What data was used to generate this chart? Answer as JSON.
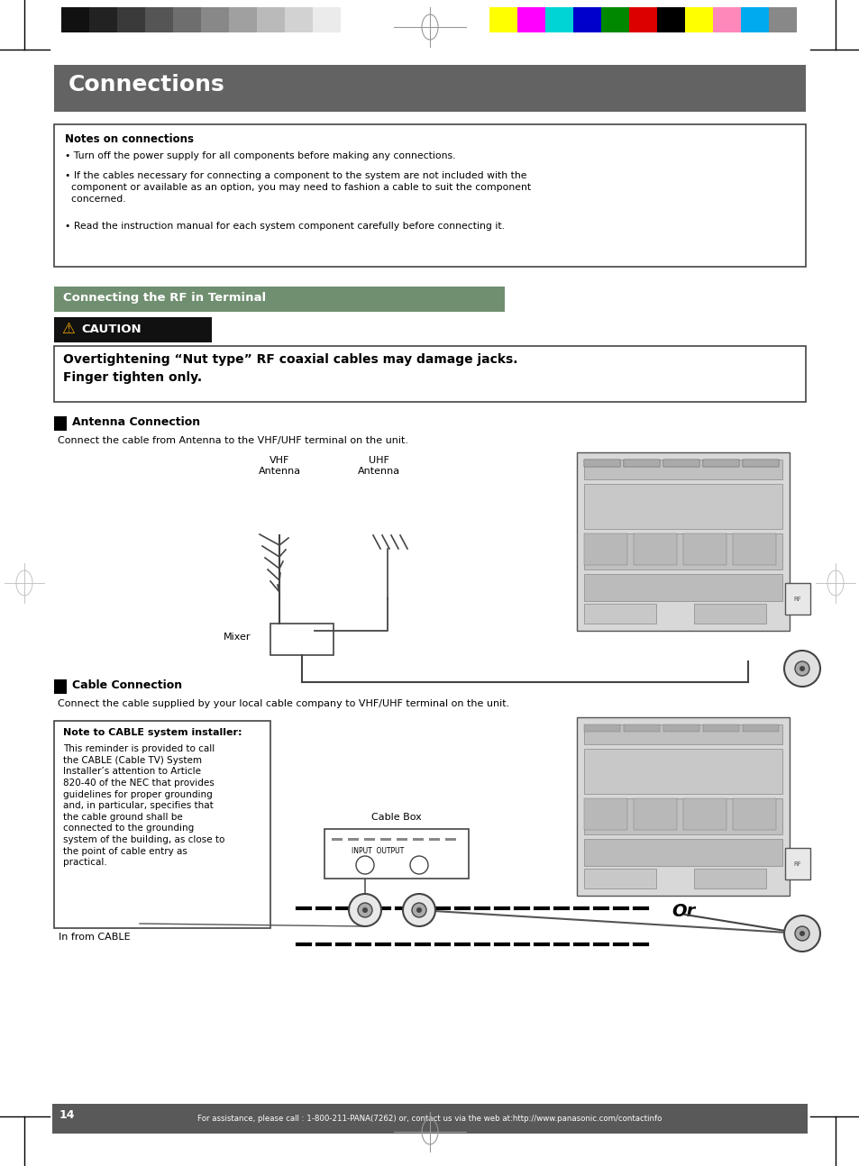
{
  "page_bg": "#ffffff",
  "header_bar_color": "#636363",
  "header_text": "Connections",
  "header_text_color": "#ffffff",
  "color_bar_left": [
    "#111111",
    "#222222",
    "#3a3a3a",
    "#555555",
    "#6e6e6e",
    "#888888",
    "#a0a0a0",
    "#bababa",
    "#d2d2d2",
    "#ebebeb",
    "#ffffff"
  ],
  "color_bar_right": [
    "#ffff00",
    "#ff00ff",
    "#00d4d4",
    "#0000cc",
    "#008800",
    "#dd0000",
    "#000000",
    "#ffff00",
    "#ff88bb",
    "#00aaee",
    "#888888"
  ],
  "notes_box_title": "Notes on connections",
  "bullet1": "Turn off the power supply for all components before making any connections.",
  "bullet2": "If the cables necessary for connecting a component to the system are not included with the\n  component or available as an option, you may need to fashion a cable to suit the component\n  concerned.",
  "bullet3": "Read the instruction manual for each system component carefully before connecting it.",
  "section2_title": "Connecting the RF in Terminal",
  "section2_bg": "#6a8f6a",
  "caution_label": "CAUTION",
  "caution_bg": "#111111",
  "caution_text": "Overtightening “Nut type” RF coaxial cables may damage jacks.\nFinger tighten only.",
  "antenna_title": "Antenna Connection",
  "antenna_body": "Connect the cable from Antenna to the VHF/UHF terminal on the unit.",
  "vhf_label": "VHF\nAntenna",
  "uhf_label": "UHF\nAntenna",
  "mixer_label": "Mixer",
  "cable_title": "Cable Connection",
  "cable_body": "Connect the cable supplied by your local cable company to VHF/UHF terminal on the unit.",
  "note_cable_title": "Note to CABLE system installer:",
  "note_cable_body": "This reminder is provided to call\nthe CABLE (Cable TV) System\nInstaller’s attention to Article\n820-40 of the NEC that provides\nguidelines for proper grounding\nand, in particular, specifies that\nthe cable ground shall be\nconnected to the grounding\nsystem of the building, as close to\nthe point of cable entry as\npractical.",
  "cable_box_label": "Cable Box",
  "in_from_cable": "In from CABLE",
  "or_label": "Or",
  "footer_page": "14",
  "footer_text": "For assistance, please call : 1-800-211-PANA(7262) or, contact us via the web at:http://www.panasonic.com/contactinfo",
  "footer_bg": "#595959",
  "footer_text_color": "#ffffff"
}
